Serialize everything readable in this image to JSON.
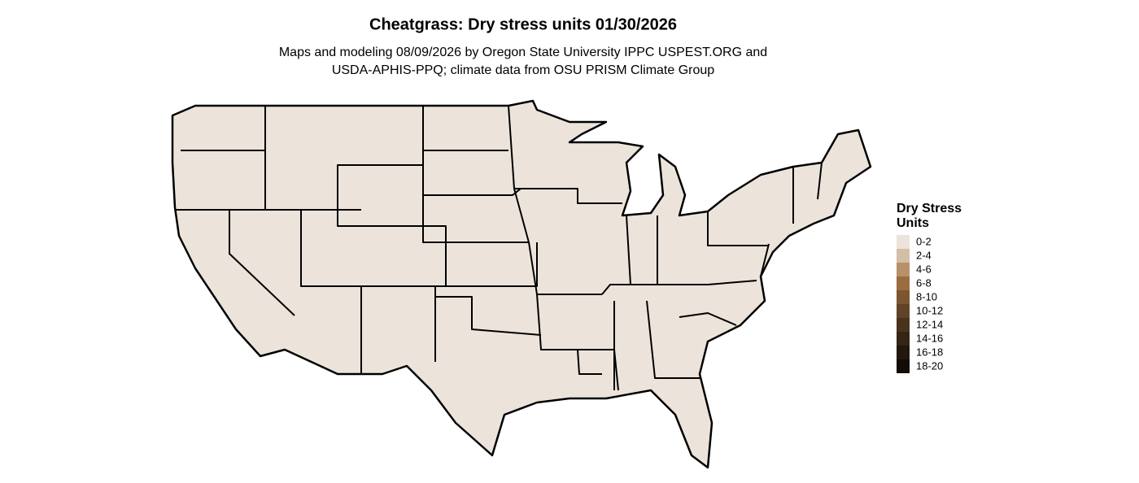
{
  "title": "Cheatgrass: Dry stress units 01/30/2026",
  "subtitle_lines": [
    "Maps and modeling 08/09/2026 by Oregon State University IPPC USPEST.ORG and",
    "USDA-APHIS-PPQ; climate data from OSU PRISM Climate Group"
  ],
  "legend": {
    "title_lines": [
      "Dry Stress",
      "Units"
    ],
    "items": [
      {
        "label": "0-2",
        "color": "#ece4db"
      },
      {
        "label": "2-4",
        "color": "#d5bea6"
      },
      {
        "label": "4-6",
        "color": "#b8916a"
      },
      {
        "label": "6-8",
        "color": "#9b6c40"
      },
      {
        "label": "8-10",
        "color": "#7d5530"
      },
      {
        "label": "10-12",
        "color": "#614327"
      },
      {
        "label": "12-14",
        "color": "#4a331e"
      },
      {
        "label": "14-16",
        "color": "#352516"
      },
      {
        "label": "16-18",
        "color": "#22180e"
      },
      {
        "label": "18-20",
        "color": "#120c06"
      }
    ]
  }
}
